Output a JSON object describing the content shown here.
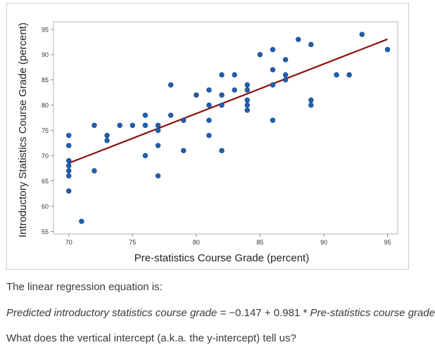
{
  "chart_data": {
    "type": "scatter",
    "title": "",
    "xlabel": "Pre-statistics Course Grade (percent)",
    "ylabel": "Introductory Statistics Course Grade (percent)",
    "xlim": [
      68.8,
      95.8
    ],
    "ylim": [
      54.5,
      96.5
    ],
    "xticks": [
      70,
      75,
      80,
      85,
      90,
      95
    ],
    "yticks": [
      55,
      60,
      65,
      70,
      75,
      80,
      85,
      90,
      95
    ],
    "grid": false,
    "point_color": "#1f5fae",
    "line_color": "#8b1010",
    "points": [
      {
        "x": 70,
        "y": 74
      },
      {
        "x": 70,
        "y": 72
      },
      {
        "x": 70,
        "y": 69
      },
      {
        "x": 70,
        "y": 68
      },
      {
        "x": 70,
        "y": 67
      },
      {
        "x": 70,
        "y": 66
      },
      {
        "x": 70,
        "y": 63
      },
      {
        "x": 71,
        "y": 57
      },
      {
        "x": 72,
        "y": 76
      },
      {
        "x": 72,
        "y": 67
      },
      {
        "x": 73,
        "y": 74
      },
      {
        "x": 73,
        "y": 73
      },
      {
        "x": 74,
        "y": 76
      },
      {
        "x": 75,
        "y": 76
      },
      {
        "x": 76,
        "y": 78
      },
      {
        "x": 76,
        "y": 76
      },
      {
        "x": 76,
        "y": 70
      },
      {
        "x": 77,
        "y": 76
      },
      {
        "x": 77,
        "y": 75
      },
      {
        "x": 77,
        "y": 72
      },
      {
        "x": 77,
        "y": 66
      },
      {
        "x": 78,
        "y": 84
      },
      {
        "x": 78,
        "y": 78
      },
      {
        "x": 79,
        "y": 77
      },
      {
        "x": 79,
        "y": 71
      },
      {
        "x": 80,
        "y": 82
      },
      {
        "x": 81,
        "y": 83
      },
      {
        "x": 81,
        "y": 80
      },
      {
        "x": 81,
        "y": 77
      },
      {
        "x": 81,
        "y": 74
      },
      {
        "x": 82,
        "y": 86
      },
      {
        "x": 82,
        "y": 82
      },
      {
        "x": 82,
        "y": 80
      },
      {
        "x": 82,
        "y": 71
      },
      {
        "x": 83,
        "y": 86
      },
      {
        "x": 83,
        "y": 83
      },
      {
        "x": 84,
        "y": 84
      },
      {
        "x": 84,
        "y": 83
      },
      {
        "x": 84,
        "y": 81
      },
      {
        "x": 84,
        "y": 80
      },
      {
        "x": 84,
        "y": 79
      },
      {
        "x": 85,
        "y": 90
      },
      {
        "x": 86,
        "y": 91
      },
      {
        "x": 86,
        "y": 87
      },
      {
        "x": 86,
        "y": 84
      },
      {
        "x": 86,
        "y": 77
      },
      {
        "x": 87,
        "y": 89
      },
      {
        "x": 87,
        "y": 86
      },
      {
        "x": 87,
        "y": 85
      },
      {
        "x": 88,
        "y": 93
      },
      {
        "x": 89,
        "y": 92
      },
      {
        "x": 89,
        "y": 81
      },
      {
        "x": 89,
        "y": 80
      },
      {
        "x": 91,
        "y": 86
      },
      {
        "x": 92,
        "y": 86
      },
      {
        "x": 93,
        "y": 94
      },
      {
        "x": 95,
        "y": 91
      }
    ],
    "regression_line": {
      "x_start": 70,
      "x_end": 95,
      "intercept": -0.147,
      "slope": 0.981
    }
  },
  "text": {
    "intro": "The linear regression equation is:",
    "equation": "Predicted introductory statistics course grade = −0.147 + 0.981 * Pre-statistics course grade",
    "equation_prefix": "Predicted introductory statistics course grade = ",
    "equation_numbers": "−0.147 + 0.981 * ",
    "equation_suffix": "Pre-statistics course grade",
    "question": "What does the vertical intercept (a.k.a. the y-intercept) tell us?"
  }
}
